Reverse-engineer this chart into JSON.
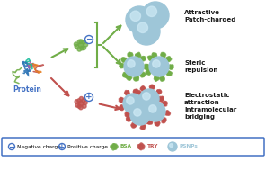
{
  "bg_color": "#ffffff",
  "protein_label": "Protein",
  "protein_label_color": "#4472c4",
  "green_color": "#70ad47",
  "red_color": "#c0504d",
  "sphere_color": "#9ec6d8",
  "sphere_highlight": "#cce8f4",
  "charge_circle_color": "#4472c4",
  "text_color_black": "#1a1a1a",
  "text_attractive": "Attractive\nPatch-charged",
  "text_steric": "Steric\nrepulsion",
  "text_electrostatic": "Electrostatic\nattraction\nIntramolecular\nbridging",
  "legend_box_color": "#4472c4",
  "legend_neg": "Negative charge",
  "legend_pos": "Positive charge",
  "legend_bsa": "BSA",
  "legend_try": "TRY",
  "legend_psnp": "PSNPs",
  "figsize": [
    2.96,
    1.89
  ],
  "dpi": 100
}
